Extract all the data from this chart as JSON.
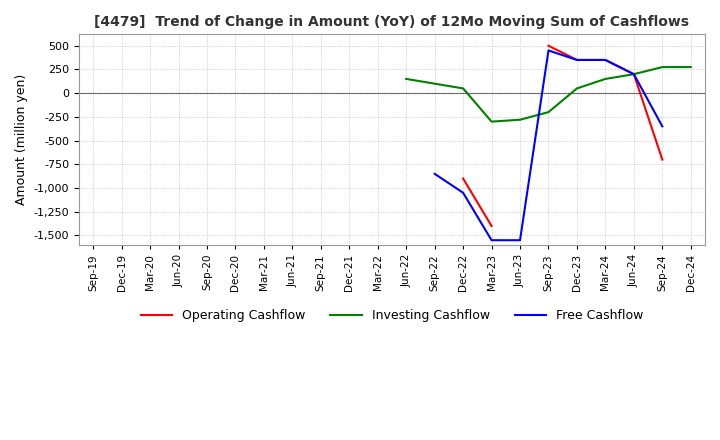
{
  "title": "[4479]  Trend of Change in Amount (YoY) of 12Mo Moving Sum of Cashflows",
  "ylabel": "Amount (million yen)",
  "yticks": [
    500,
    250,
    0,
    -250,
    -500,
    -750,
    -1000,
    -1250,
    -1500
  ],
  "ylim": [
    -1600,
    620
  ],
  "background_color": "#ffffff",
  "grid_color": "#b0b0b0",
  "dates": [
    "Sep-19",
    "Dec-19",
    "Mar-20",
    "Jun-20",
    "Sep-20",
    "Dec-20",
    "Mar-21",
    "Jun-21",
    "Sep-21",
    "Dec-21",
    "Mar-22",
    "Jun-22",
    "Sep-22",
    "Dec-22",
    "Mar-23",
    "Jun-23",
    "Sep-23",
    "Dec-23",
    "Mar-24",
    "Jun-24",
    "Sep-24",
    "Dec-24"
  ],
  "operating": [
    null,
    null,
    null,
    null,
    null,
    null,
    null,
    null,
    null,
    null,
    null,
    null,
    null,
    -900,
    -1400,
    null,
    500,
    350,
    350,
    200,
    -700,
    null
  ],
  "investing": [
    null,
    null,
    null,
    null,
    null,
    null,
    null,
    null,
    null,
    null,
    null,
    150,
    100,
    50,
    -300,
    -280,
    -200,
    50,
    150,
    200,
    275,
    275
  ],
  "free": [
    null,
    null,
    null,
    null,
    null,
    null,
    null,
    null,
    null,
    null,
    null,
    null,
    -850,
    -1050,
    -1550,
    -1550,
    450,
    350,
    350,
    200,
    -350,
    null
  ],
  "op_color": "#ff0000",
  "inv_color": "#008000",
  "free_color": "#0000ff",
  "legend_labels": [
    "Operating Cashflow",
    "Investing Cashflow",
    "Free Cashflow"
  ]
}
